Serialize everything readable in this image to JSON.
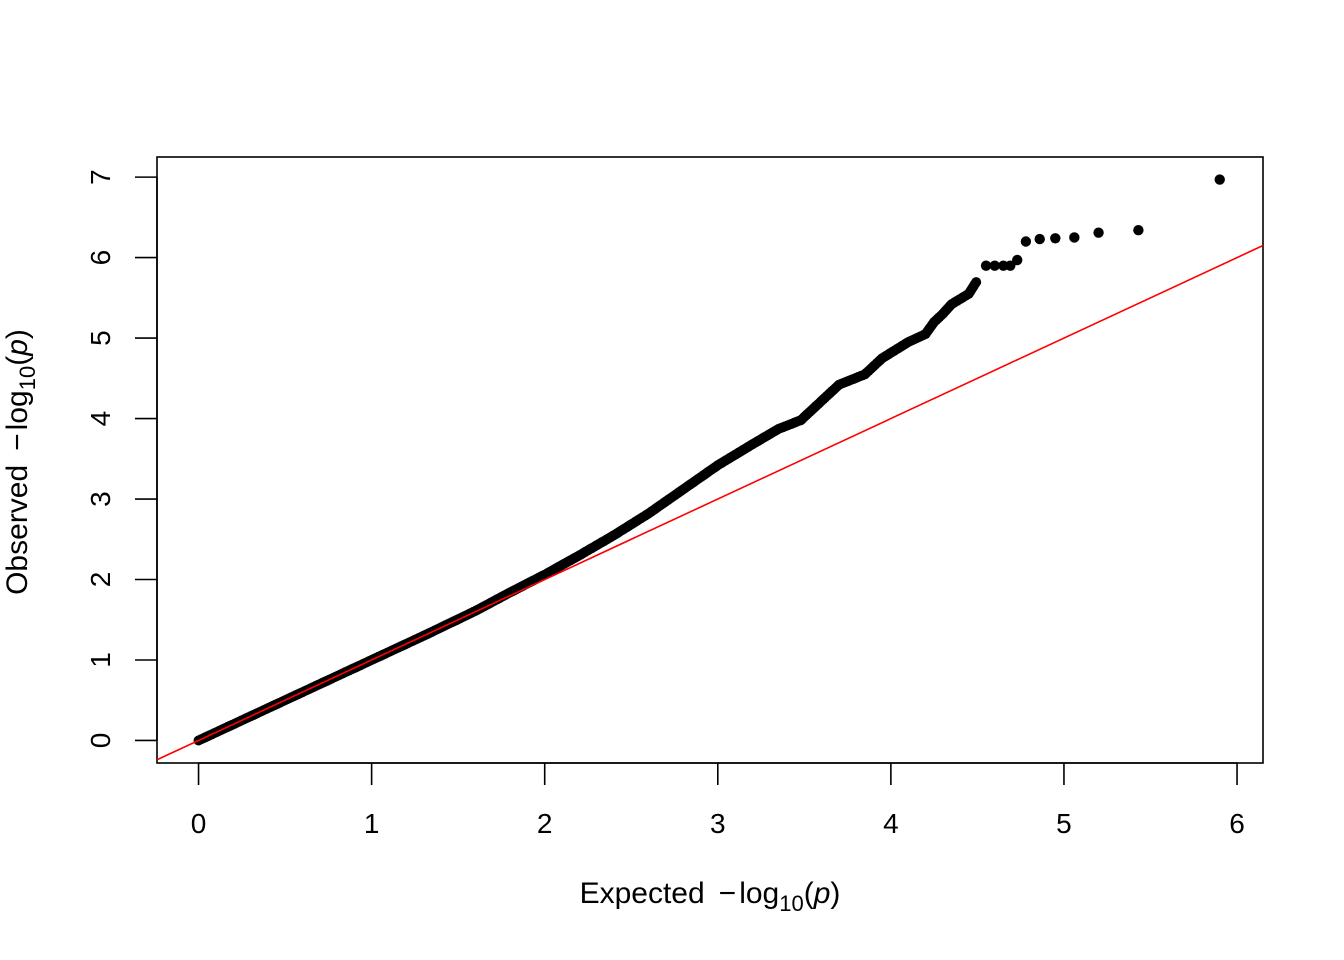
{
  "chart_data": {
    "type": "scatter",
    "title": "",
    "xlabel": {
      "prefix": "Expected",
      "minus": "−",
      "func": "log",
      "sub": "10",
      "arg": "p"
    },
    "ylabel": {
      "prefix": "Observed",
      "minus": "−",
      "func": "log",
      "sub": "10",
      "arg": "p"
    },
    "xlim": [
      -0.24,
      6.15
    ],
    "ylim": [
      -0.28,
      7.25
    ],
    "xticks": [
      0,
      1,
      2,
      3,
      4,
      5,
      6
    ],
    "yticks": [
      0,
      1,
      2,
      3,
      4,
      5,
      6,
      7
    ],
    "grid": false,
    "reference_line": {
      "slope": 1,
      "intercept": 0,
      "color": "#ff0000"
    },
    "point_color": "#000000",
    "curve": [
      [
        0.0,
        0.0
      ],
      [
        0.3,
        0.3
      ],
      [
        0.6,
        0.6
      ],
      [
        1.0,
        1.0
      ],
      [
        1.3,
        1.3
      ],
      [
        1.6,
        1.61
      ],
      [
        1.8,
        1.84
      ],
      [
        2.0,
        2.06
      ],
      [
        2.2,
        2.3
      ],
      [
        2.4,
        2.55
      ],
      [
        2.6,
        2.82
      ],
      [
        2.8,
        3.12
      ],
      [
        3.0,
        3.42
      ],
      [
        3.2,
        3.68
      ],
      [
        3.35,
        3.87
      ],
      [
        3.48,
        3.98
      ],
      [
        3.6,
        4.22
      ],
      [
        3.7,
        4.42
      ],
      [
        3.85,
        4.55
      ],
      [
        3.95,
        4.75
      ],
      [
        4.1,
        4.95
      ],
      [
        4.2,
        5.05
      ],
      [
        4.25,
        5.2
      ],
      [
        4.3,
        5.3
      ],
      [
        4.35,
        5.42
      ],
      [
        4.45,
        5.55
      ],
      [
        4.5,
        5.72
      ]
    ],
    "outliers": [
      [
        4.55,
        5.9
      ],
      [
        4.6,
        5.9
      ],
      [
        4.65,
        5.9
      ],
      [
        4.69,
        5.9
      ],
      [
        4.73,
        5.97
      ],
      [
        4.78,
        6.2
      ],
      [
        4.86,
        6.23
      ],
      [
        4.95,
        6.24
      ],
      [
        5.06,
        6.25
      ],
      [
        5.2,
        6.31
      ],
      [
        5.43,
        6.34
      ],
      [
        5.9,
        6.97
      ]
    ]
  }
}
